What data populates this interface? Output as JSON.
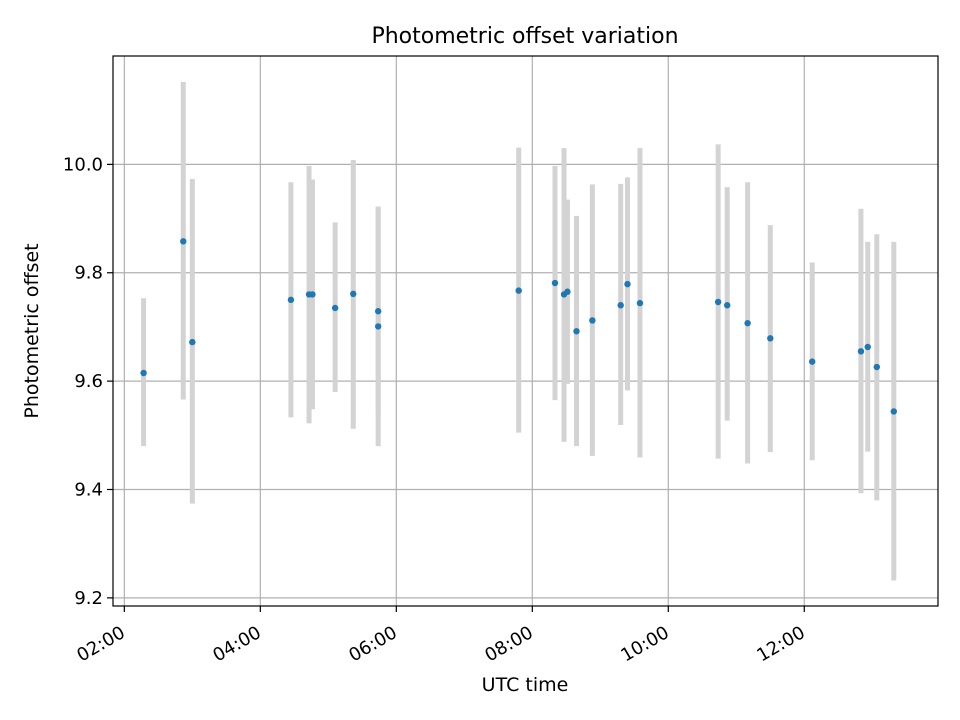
{
  "chart_data": {
    "type": "scatter",
    "title": "Photometric offset variation",
    "xlabel": "UTC time",
    "ylabel": "Photometric offset",
    "x_unit": "UTC time (HH:MM)",
    "xlim": [
      "01:50",
      "13:58"
    ],
    "ylim": [
      9.185,
      10.2
    ],
    "x_ticks": [
      "02:00",
      "04:00",
      "06:00",
      "08:00",
      "10:00",
      "12:00"
    ],
    "y_ticks": [
      9.2,
      9.4,
      9.6,
      9.8,
      10.0
    ],
    "grid": true,
    "marker_color": "#1f77b4",
    "errorbar_color": "#d3d3d3",
    "series": [
      {
        "points": [
          {
            "x": "02:17",
            "y": 9.615,
            "low": 9.48,
            "high": 9.753
          },
          {
            "x": "02:52",
            "y": 9.858,
            "low": 9.566,
            "high": 10.152
          },
          {
            "x": "03:00",
            "y": 9.672,
            "low": 9.374,
            "high": 9.973
          },
          {
            "x": "04:27",
            "y": 9.75,
            "low": 9.533,
            "high": 9.967
          },
          {
            "x": "04:43",
            "y": 9.76,
            "low": 9.522,
            "high": 9.997
          },
          {
            "x": "04:46",
            "y": 9.76,
            "low": 9.548,
            "high": 9.972
          },
          {
            "x": "05:06",
            "y": 9.735,
            "low": 9.58,
            "high": 9.893
          },
          {
            "x": "05:22",
            "y": 9.761,
            "low": 9.512,
            "high": 10.008
          },
          {
            "x": "05:44",
            "y": 9.729,
            "low": 9.54,
            "high": 9.922
          },
          {
            "x": "05:44",
            "y": 9.701,
            "low": 9.48,
            "high": 9.922
          },
          {
            "x": "07:48",
            "y": 9.767,
            "low": 9.505,
            "high": 10.031
          },
          {
            "x": "08:20",
            "y": 9.781,
            "low": 9.565,
            "high": 9.997
          },
          {
            "x": "08:28",
            "y": 9.76,
            "low": 9.488,
            "high": 10.03
          },
          {
            "x": "08:31",
            "y": 9.765,
            "low": 9.595,
            "high": 9.935
          },
          {
            "x": "08:39",
            "y": 9.692,
            "low": 9.48,
            "high": 9.905
          },
          {
            "x": "08:53",
            "y": 9.712,
            "low": 9.462,
            "high": 9.963
          },
          {
            "x": "09:18",
            "y": 9.74,
            "low": 9.519,
            "high": 9.964
          },
          {
            "x": "09:24",
            "y": 9.779,
            "low": 9.583,
            "high": 9.976
          },
          {
            "x": "09:35",
            "y": 9.744,
            "low": 9.459,
            "high": 10.03
          },
          {
            "x": "10:44",
            "y": 9.746,
            "low": 9.457,
            "high": 10.037
          },
          {
            "x": "10:52",
            "y": 9.74,
            "low": 9.527,
            "high": 9.958
          },
          {
            "x": "11:10",
            "y": 9.707,
            "low": 9.448,
            "high": 9.967
          },
          {
            "x": "11:30",
            "y": 9.679,
            "low": 9.469,
            "high": 9.888
          },
          {
            "x": "12:07",
            "y": 9.636,
            "low": 9.454,
            "high": 9.819
          },
          {
            "x": "12:50",
            "y": 9.655,
            "low": 9.393,
            "high": 9.918
          },
          {
            "x": "12:56",
            "y": 9.663,
            "low": 9.47,
            "high": 9.857
          },
          {
            "x": "13:04",
            "y": 9.626,
            "low": 9.38,
            "high": 9.871
          },
          {
            "x": "13:19",
            "y": 9.544,
            "low": 9.232,
            "high": 9.857
          }
        ]
      }
    ]
  }
}
